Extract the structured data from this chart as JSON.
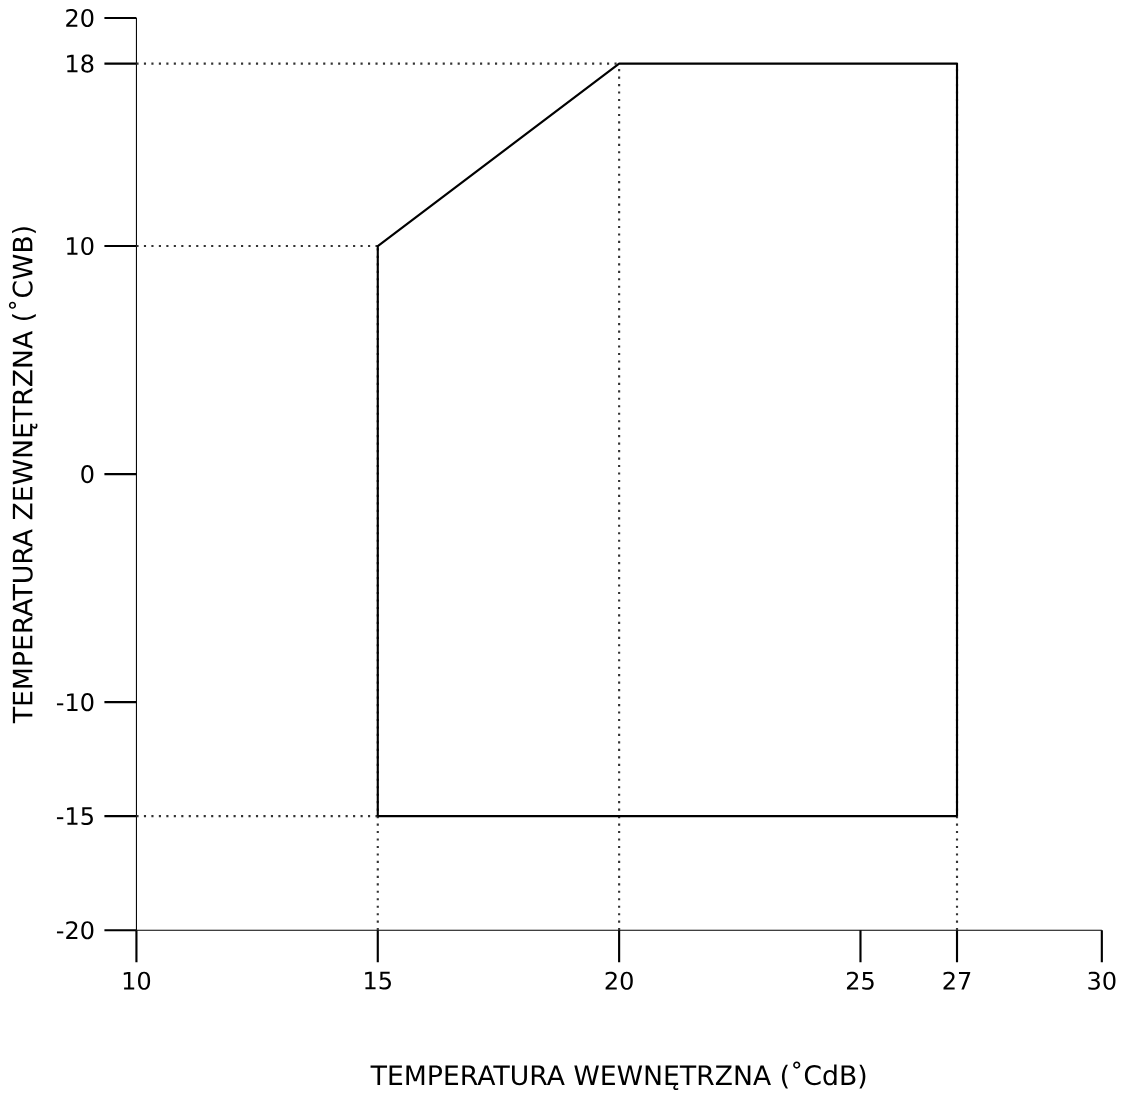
{
  "chart_data": {
    "type": "line",
    "xlabel": "TEMPERATURA WEWNĘTRZNA (˚CdB)",
    "ylabel": "TEMPERATURA ZEWNĘTRZNA (˚CWB)",
    "series": [
      {
        "color": "#000000",
        "x": [
          15,
          15,
          20,
          27,
          27
        ],
        "values": [
          -15,
          10,
          18,
          18,
          -15
        ]
      },
      {
        "color": "#000000",
        "x": [
          15,
          27
        ],
        "values": [
          -15,
          -15
        ]
      }
    ],
    "xlim": [
      10,
      30
    ],
    "ylim": [
      -20,
      20
    ],
    "xticks": [
      10,
      15,
      20,
      25,
      27,
      30
    ],
    "yticks": [
      -20,
      -15,
      -10,
      0,
      10,
      18,
      20
    ],
    "ref_lines": [
      {
        "axis": "x",
        "value": 15,
        "line_style": "dotted",
        "color": "#333333"
      },
      {
        "axis": "x",
        "value": 20,
        "line_style": "dotted",
        "color": "#333333"
      },
      {
        "axis": "x",
        "value": 27,
        "line_style": "dotted",
        "color": "#333333"
      },
      {
        "axis": "y",
        "value": 10,
        "line_style": "dotted",
        "color": "#333333"
      },
      {
        "axis": "y",
        "value": 18,
        "line_style": "dotted",
        "color": "#333333"
      },
      {
        "axis": "y",
        "value": -15,
        "line_style": "dotted",
        "color": "#333333"
      }
    ],
    "marker": "none",
    "line_style": "solid",
    "grid": false
  }
}
